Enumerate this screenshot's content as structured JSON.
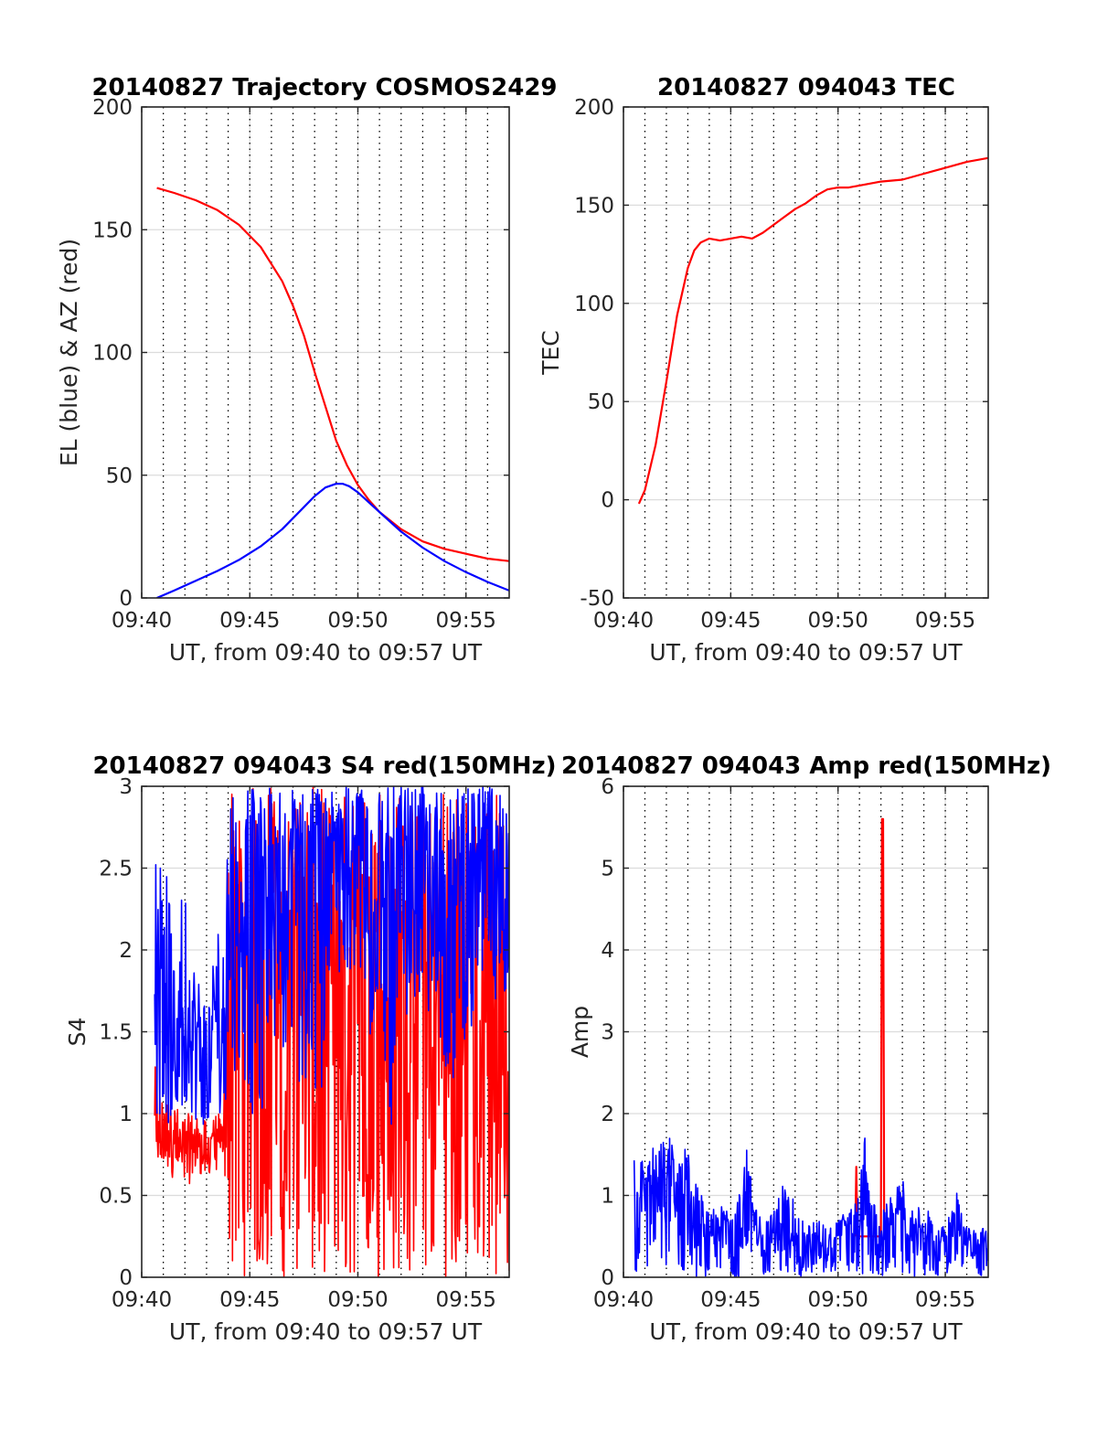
{
  "chart_data": [
    {
      "id": "trajectory",
      "type": "line",
      "title": "20140827 Trajectory COSMOS2429",
      "xlabel": "UT, from 09:40 to 09:57 UT",
      "ylabel": "EL (blue) & AZ (red)",
      "xlim": [
        0,
        17
      ],
      "ylim": [
        0,
        200
      ],
      "xtick_values": [
        0,
        5,
        10,
        15
      ],
      "xtick_labels": [
        "09:40",
        "09:45",
        "09:50",
        "09:55"
      ],
      "ytick_values": [
        0,
        50,
        100,
        150,
        200
      ],
      "ytick_labels": [
        "0",
        "50",
        "100",
        "150",
        "200"
      ],
      "grid": true,
      "series": [
        {
          "color": "#ff0000",
          "x": [
            0.7,
            1.5,
            2.5,
            3.5,
            4.5,
            5.5,
            6.5,
            7.0,
            7.5,
            8.0,
            8.5,
            9.0,
            9.5,
            10.0,
            10.5,
            11.0,
            12.0,
            13.0,
            14.0,
            15.0,
            16.0,
            17.0
          ],
          "values": [
            167,
            165,
            162,
            158,
            152,
            143,
            129,
            119,
            107,
            92,
            78,
            64,
            54,
            46,
            40,
            35,
            28,
            23,
            20,
            18,
            16,
            15
          ]
        },
        {
          "color": "#0000ff",
          "x": [
            0.7,
            1.5,
            2.5,
            3.5,
            4.5,
            5.5,
            6.5,
            7.5,
            8.0,
            8.5,
            9.0,
            9.3,
            9.6,
            10.0,
            10.5,
            11.0,
            12.0,
            13.0,
            14.0,
            15.0,
            16.0,
            17.0
          ],
          "values": [
            0,
            3,
            7,
            11,
            15.5,
            21,
            28,
            37,
            41.5,
            45,
            46.5,
            46.5,
            45.5,
            43,
            39,
            35,
            27,
            20.5,
            15,
            10.5,
            6.5,
            3
          ]
        }
      ]
    },
    {
      "id": "tec",
      "type": "line",
      "title": "20140827 094043 TEC",
      "xlabel": "UT, from 09:40 to 09:57 UT",
      "ylabel": "TEC",
      "xlim": [
        0,
        17
      ],
      "ylim": [
        -50,
        200
      ],
      "xtick_values": [
        0,
        5,
        10,
        15
      ],
      "xtick_labels": [
        "09:40",
        "09:45",
        "09:50",
        "09:55"
      ],
      "ytick_values": [
        -50,
        0,
        50,
        100,
        150,
        200
      ],
      "ytick_labels": [
        "-50",
        "0",
        "50",
        "100",
        "150",
        "200"
      ],
      "grid": true,
      "series": [
        {
          "color": "#ff0000",
          "x": [
            0.72,
            1.0,
            1.5,
            2.0,
            2.5,
            3.0,
            3.3,
            3.6,
            4.0,
            4.5,
            5.0,
            5.5,
            6.0,
            6.5,
            7.0,
            7.5,
            8.0,
            8.5,
            9.0,
            9.5,
            10.0,
            10.5,
            11.0,
            12.0,
            13.0,
            14.0,
            15.0,
            16.0,
            17.0
          ],
          "values": [
            -2,
            5,
            28,
            60,
            94,
            118,
            127,
            131,
            133,
            132,
            133,
            134,
            133,
            136,
            140,
            144,
            148,
            151,
            155,
            158,
            159,
            159,
            160,
            162,
            163,
            166,
            169,
            172,
            174
          ]
        }
      ]
    },
    {
      "id": "s4",
      "type": "line",
      "title": "20140827 094043 S4 red(150MHz)",
      "xlabel": "UT, from 09:40 to 09:57 UT",
      "ylabel": "S4",
      "xlim": [
        0,
        17
      ],
      "ylim": [
        0,
        3
      ],
      "xtick_values": [
        0,
        5,
        10,
        15
      ],
      "xtick_labels": [
        "09:40",
        "09:45",
        "09:50",
        "09:55"
      ],
      "ytick_values": [
        0,
        0.5,
        1,
        1.5,
        2,
        2.5,
        3
      ],
      "ytick_labels": [
        "0",
        "0.5",
        "1",
        "1.5",
        "2",
        "2.5",
        "3"
      ],
      "grid": true,
      "series": [
        {
          "color": "#ff0000",
          "x": [
            0.6,
            1.0,
            1.5,
            2.0,
            2.5,
            3.0,
            3.5,
            3.8,
            4.0,
            4.5,
            5.0,
            5.5,
            6.0,
            6.5,
            7.0,
            7.5,
            8.0,
            8.5,
            9.0,
            9.5,
            10.0,
            10.5,
            11.0,
            11.5,
            12.0,
            12.5,
            13.0,
            13.5,
            14.0,
            14.5,
            15.0,
            15.5,
            16.0,
            16.5,
            17.0
          ],
          "values": [
            0.85,
            0.9,
            0.85,
            0.8,
            0.85,
            0.75,
            0.85,
            0.8,
            3.0,
            1.5,
            3.0,
            0.3,
            2.8,
            0.5,
            2.5,
            1.9,
            2.2,
            0.3,
            2.6,
            0.5,
            3.0,
            0.4,
            2.9,
            0.6,
            3.0,
            0.5,
            2.8,
            0.3,
            3.0,
            0.5,
            2.7,
            0.3,
            3.0,
            0.8,
            1.7
          ],
          "band_min": [
            0.6,
            0.65,
            0.6,
            0.55,
            0.6,
            0.62,
            0.65,
            0.7,
            0,
            0,
            0,
            0,
            0,
            0,
            0,
            0,
            0,
            0,
            0,
            0,
            0,
            0,
            0,
            0,
            0,
            0,
            0,
            0,
            0,
            0,
            0,
            0,
            0,
            0,
            0
          ],
          "band_max": [
            1.3,
            1.1,
            1.05,
            1.0,
            1.0,
            0.95,
            1.0,
            1.0,
            3,
            3,
            3,
            3,
            3,
            3,
            3,
            3,
            3,
            3,
            3,
            3,
            3,
            3,
            3,
            3,
            3,
            3,
            3,
            3,
            3,
            3,
            3,
            3,
            3,
            3,
            3
          ]
        },
        {
          "color": "#0000ff",
          "x": [
            0.6,
            1.0,
            1.5,
            2.0,
            2.5,
            3.0,
            3.5,
            3.8,
            4.0,
            4.5,
            5.0,
            5.5,
            6.0,
            6.5,
            7.0,
            7.5,
            8.0,
            8.5,
            9.0,
            9.5,
            10.0,
            10.5,
            11.0,
            11.5,
            12.0,
            12.5,
            13.0,
            13.5,
            14.0,
            14.5,
            15.0,
            15.5,
            16.0,
            16.5,
            17.0
          ],
          "values": [
            2.0,
            1.8,
            1.2,
            1.6,
            1.3,
            1.1,
            1.4,
            1.2,
            2.7,
            2.2,
            2.9,
            2.4,
            2.7,
            2.3,
            2.8,
            2.5,
            2.7,
            2.6,
            2.8,
            2.7,
            2.9,
            2.6,
            2.8,
            1.5,
            2.7,
            2.2,
            2.9,
            2.6,
            2.8,
            2.3,
            2.9,
            2.4,
            2.8,
            2.5,
            2.6
          ],
          "band_min": [
            1.0,
            0.95,
            0.9,
            1.0,
            0.95,
            0.9,
            1.0,
            1.0,
            1.2,
            1.3,
            1.0,
            0.9,
            1.6,
            1.2,
            1.5,
            0.9,
            1.0,
            1.1,
            1.8,
            1.6,
            1.9,
            1.3,
            1.8,
            0.8,
            1.5,
            1.7,
            1.6,
            1.2,
            1.3,
            1.1,
            1.5,
            1.3,
            1.6,
            1.4,
            1.7
          ],
          "band_max": [
            3,
            2.6,
            2.2,
            2.4,
            1.9,
            1.7,
            2.2,
            2.0,
            3,
            3,
            3,
            3,
            3,
            3,
            3,
            3,
            3,
            3,
            3,
            3,
            3,
            3,
            3,
            3,
            3,
            3,
            3,
            3,
            3,
            3,
            3,
            3,
            3,
            3,
            3
          ]
        }
      ]
    },
    {
      "id": "amp",
      "type": "line",
      "title": "20140827 094043 Amp red(150MHz)",
      "xlabel": "UT, from 09:40 to 09:57 UT",
      "ylabel": "Amp",
      "xlim": [
        0,
        17
      ],
      "ylim": [
        0,
        6
      ],
      "xtick_values": [
        0,
        5,
        10,
        15
      ],
      "xtick_labels": [
        "09:40",
        "09:45",
        "09:50",
        "09:55"
      ],
      "ytick_values": [
        0,
        1,
        2,
        3,
        4,
        5,
        6
      ],
      "ytick_labels": [
        "0",
        "1",
        "2",
        "3",
        "4",
        "5",
        "6"
      ],
      "grid": true,
      "series": [
        {
          "color": "#ff0000",
          "x": [
            10.8,
            10.85,
            10.9,
            12.0,
            12.05,
            12.1,
            12.15,
            12.2
          ],
          "values": [
            0.5,
            1.35,
            0.5,
            0.5,
            5.6,
            5.6,
            0.5,
            0.5
          ]
        },
        {
          "color": "#0000ff",
          "x": [
            0.5,
            1.0,
            1.5,
            2.0,
            2.5,
            3.0,
            3.5,
            4.0,
            4.5,
            5.0,
            5.5,
            5.8,
            6.0,
            6.5,
            7.0,
            7.5,
            8.0,
            8.5,
            9.0,
            9.5,
            10.0,
            10.5,
            11.0,
            11.2,
            11.5,
            12.0,
            12.5,
            13.0,
            13.5,
            14.0,
            14.5,
            15.0,
            15.5,
            16.0,
            16.5,
            17.0
          ],
          "values": [
            0.8,
            1.0,
            1.1,
            1.2,
            1.0,
            1.1,
            0.6,
            0.5,
            0.6,
            0.5,
            0.8,
            1.1,
            0.7,
            0.5,
            0.4,
            0.5,
            0.6,
            0.5,
            0.5,
            0.45,
            0.5,
            0.6,
            0.6,
            1.2,
            0.7,
            0.5,
            0.7,
            0.9,
            0.5,
            0.6,
            0.5,
            0.5,
            0.8,
            0.4,
            0.5,
            0.5
          ],
          "band_min": [
            0,
            0,
            0,
            0,
            0,
            0,
            0,
            0,
            0,
            0,
            0,
            0,
            0,
            0,
            0,
            0,
            0,
            0,
            0,
            0,
            0,
            0,
            0,
            0,
            0,
            0,
            0,
            0,
            0,
            0,
            0,
            0,
            0,
            0,
            0,
            0
          ],
          "band_max": [
            1.6,
            1.55,
            1.6,
            1.75,
            1.8,
            1.7,
            1.1,
            0.8,
            0.9,
            0.8,
            1.2,
            1.65,
            1.0,
            0.7,
            0.8,
            1.3,
            0.9,
            0.6,
            0.75,
            0.6,
            0.7,
            0.9,
            1.0,
            1.85,
            1.0,
            0.8,
            1.0,
            1.2,
            0.8,
            0.9,
            0.7,
            0.6,
            1.1,
            0.6,
            0.6,
            0.6
          ]
        }
      ]
    }
  ]
}
